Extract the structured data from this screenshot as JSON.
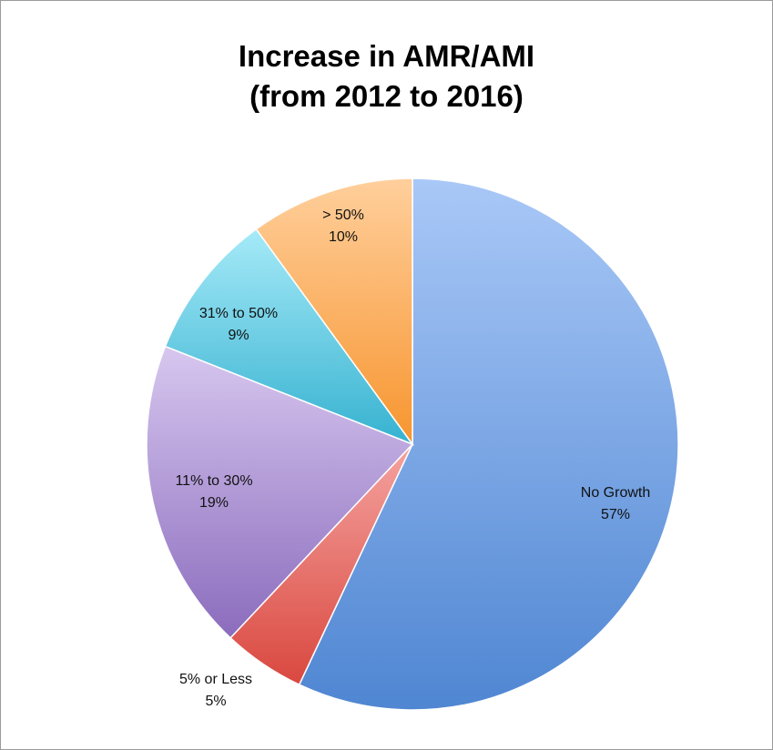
{
  "chart_data": {
    "type": "pie",
    "title_lines": [
      "Increase in AMR/AMI",
      "(from 2012 to 2016)"
    ],
    "slices": [
      {
        "label": "No Growth",
        "pct_label": "57%",
        "value": 57,
        "color_light": "#a9c8f7",
        "color_dark": "#4f86d2"
      },
      {
        "label": "5% or Less",
        "pct_label": "5%",
        "value": 5,
        "color_light": "#f5a3a0",
        "color_dark": "#d9483f"
      },
      {
        "label": "11% to 30%",
        "pct_label": "19%",
        "value": 19,
        "color_light": "#d7c7ef",
        "color_dark": "#8b6cbd"
      },
      {
        "label": "31% to 50%",
        "pct_label": "9%",
        "value": 9,
        "color_light": "#a6eaf8",
        "color_dark": "#36b2d0"
      },
      {
        "label": "> 50%",
        "pct_label": "10%",
        "value": 10,
        "color_light": "#ffcf9c",
        "color_dark": "#f7952f"
      }
    ],
    "legend": "none"
  }
}
